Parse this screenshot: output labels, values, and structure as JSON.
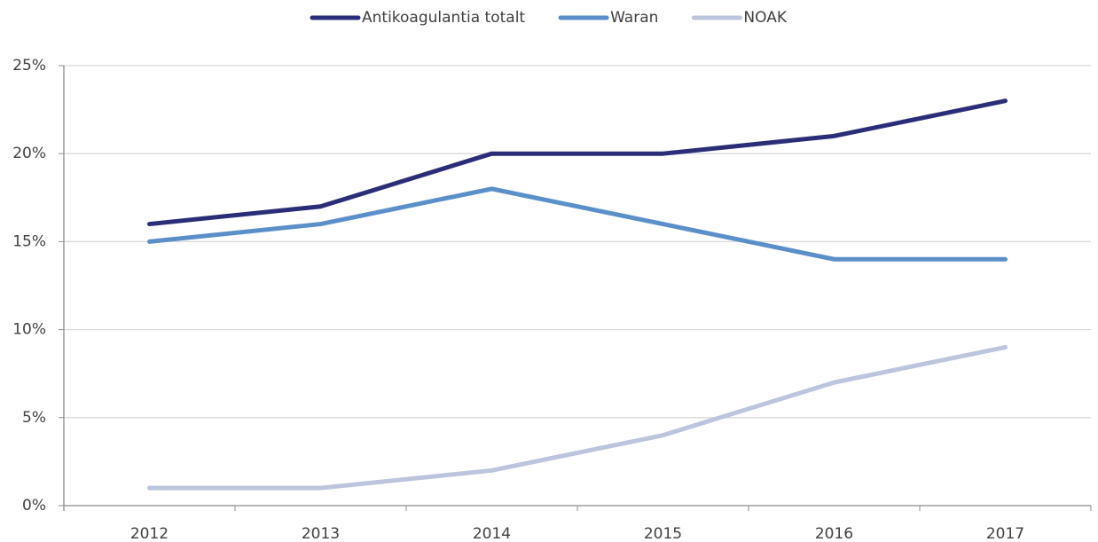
{
  "chart_data": {
    "type": "line",
    "categories": [
      "2012",
      "2013",
      "2014",
      "2015",
      "2016",
      "2017"
    ],
    "series": [
      {
        "name": "Antikoagulantia totalt",
        "color": "#2b2d78",
        "values": [
          16,
          17,
          20,
          20,
          21,
          23
        ]
      },
      {
        "name": "Waran",
        "color": "#5b8fca",
        "values": [
          15,
          16,
          18,
          16,
          14,
          14
        ]
      },
      {
        "name": "NOAK",
        "color": "#bcc5dd",
        "values": [
          1,
          1,
          2,
          4,
          7,
          9
        ]
      }
    ],
    "ylim": [
      0,
      25
    ],
    "yticks": [
      {
        "value": 0,
        "label": "0%"
      },
      {
        "value": 5,
        "label": "5%"
      },
      {
        "value": 10,
        "label": "10%"
      },
      {
        "value": 15,
        "label": "15%"
      },
      {
        "value": 20,
        "label": "20%"
      },
      {
        "value": 25,
        "label": "25%"
      }
    ],
    "grid": true,
    "legend": "top"
  }
}
